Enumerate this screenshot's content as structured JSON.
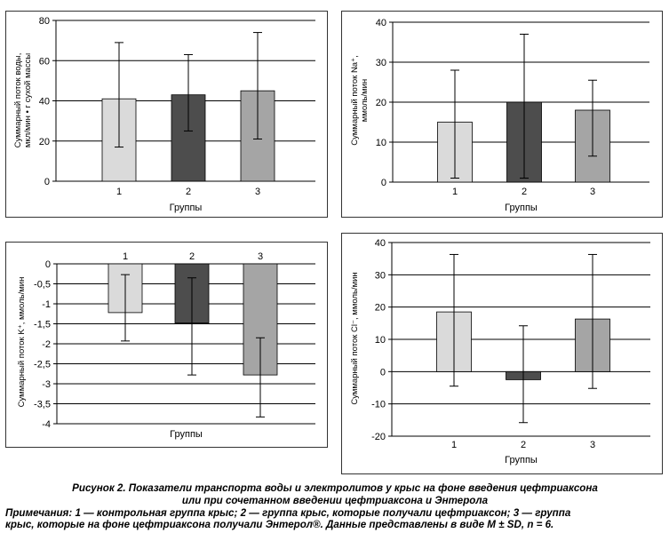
{
  "colors": {
    "group1": "#dadada",
    "group2": "#4d4d4d",
    "group3": "#a5a5a5",
    "frame": "#333333",
    "grid": "#000000"
  },
  "chart_data": [
    {
      "type": "bar",
      "categories": [
        "1",
        "2",
        "3"
      ],
      "values": [
        41,
        43,
        45
      ],
      "error_low": [
        17,
        25,
        21
      ],
      "error_high": [
        69,
        63,
        74
      ],
      "ylim": [
        0,
        80
      ],
      "yticks": [
        "0",
        "20",
        "40",
        "60",
        "80"
      ],
      "xlabel": "Группы",
      "ylabel": [
        "Суммарный поток воды,",
        "мкл/мин • г сухой массы"
      ],
      "grid": true,
      "category_labels": "bottom"
    },
    {
      "type": "bar",
      "categories": [
        "1",
        "2",
        "3"
      ],
      "values": [
        15,
        20,
        18
      ],
      "error_low": [
        1,
        1,
        6.5
      ],
      "error_high": [
        28,
        37,
        25.5
      ],
      "ylim": [
        0,
        40
      ],
      "yticks": [
        "0",
        "10",
        "20",
        "30",
        "40"
      ],
      "xlabel": "Группы",
      "ylabel": [
        "Суммарный поток Na⁺,",
        "ммоль/мин"
      ],
      "grid": true,
      "category_labels": "bottom"
    },
    {
      "type": "bar",
      "categories": [
        "1",
        "2",
        "3"
      ],
      "values": [
        -1.22,
        -1.48,
        -2.78
      ],
      "error_low": [
        -1.93,
        -2.78,
        -3.83
      ],
      "error_high": [
        -0.27,
        -0.35,
        -1.85
      ],
      "ylim": [
        -4,
        0
      ],
      "yticks": [
        "-4",
        "-3,5",
        "-3",
        "-2,5",
        "-2",
        "-1,5",
        "-1",
        "-0,5",
        "0"
      ],
      "xlabel": "Группы",
      "ylabel": [
        "Суммарный поток K⁺, ммоль/мин"
      ],
      "grid": true,
      "category_labels": "top"
    },
    {
      "type": "bar",
      "categories": [
        "1",
        "2",
        "3"
      ],
      "values": [
        18.5,
        -2.5,
        16.3
      ],
      "error_low": [
        -4.5,
        -15.8,
        -5.2
      ],
      "error_high": [
        36.3,
        14.2,
        36.3
      ],
      "ylim": [
        -20,
        40
      ],
      "yticks": [
        "-20",
        "-10",
        "0",
        "10",
        "20",
        "30",
        "40"
      ],
      "xlabel": "Группы",
      "ylabel": [
        "Суммарный поток Cl⁻, ммоль/мин"
      ],
      "grid": true,
      "category_labels": "bottom"
    }
  ],
  "caption": {
    "title_line1": "Рисунок 2. Показатели транспорта воды и электролитов у крыс на фоне введения цефтриаксона",
    "title_line2": "или при сочетанном введении цефтриаксона и Энтерола",
    "notes_line1": "Примечания: 1 — контрольная группа крыс; 2 — группа крыс, которые получали цефтриаксон; 3 — группа",
    "notes_line2": "крыс, которые на фоне цефтриаксона получали Энтерол®. Данные представлены в виде M ± SD, n = 6."
  }
}
